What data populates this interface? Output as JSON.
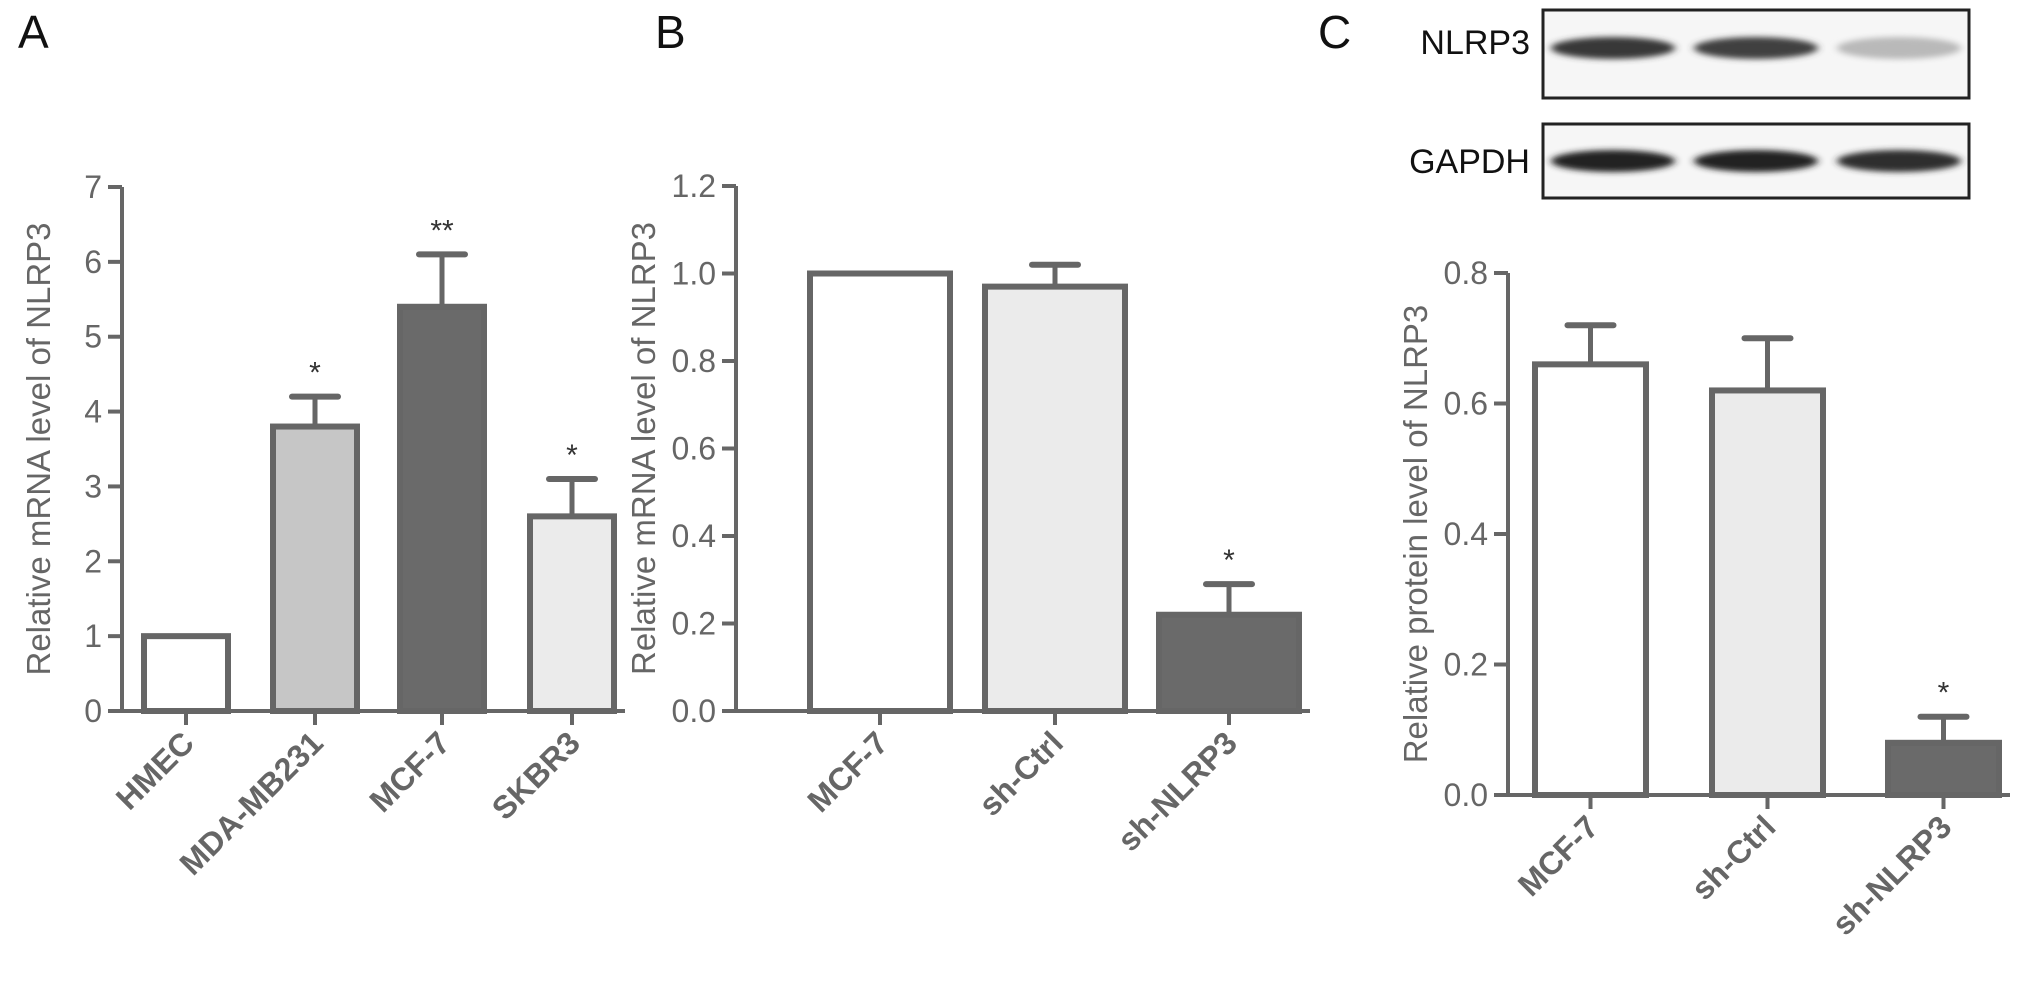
{
  "colors": {
    "axis": "#666666",
    "white": "#ffffff",
    "light": "#ebebeb",
    "mid": "#c6c6c6",
    "dark": "#6a6a6a"
  },
  "blot": {
    "panel_label": "C",
    "rows": [
      {
        "label": "NLRP3",
        "band_intensity": [
          0.9,
          0.85,
          0.25
        ]
      },
      {
        "label": "GAPDH",
        "band_intensity": [
          1.0,
          1.0,
          0.95
        ]
      }
    ]
  },
  "chart_data": [
    {
      "type": "bar",
      "panel_label": "A",
      "categories": [
        "HMEC",
        "MDA-MB231",
        "MCF-7",
        "SKBR3"
      ],
      "values": [
        1.0,
        3.8,
        5.4,
        2.6
      ],
      "error_upper": [
        1.0,
        4.2,
        6.1,
        3.1
      ],
      "significance": [
        "",
        "*",
        "**",
        "*"
      ],
      "fills": [
        "white",
        "mid",
        "dark",
        "light"
      ],
      "ylabel": "Relative mRNA level of NLRP3",
      "ylim": [
        0,
        7
      ],
      "yticks": [
        "0",
        "1",
        "2",
        "3",
        "4",
        "5",
        "6",
        "7"
      ]
    },
    {
      "type": "bar",
      "panel_label": "B",
      "categories": [
        "MCF-7",
        "sh-Ctrl",
        "sh-NLRP3"
      ],
      "values": [
        1.0,
        0.97,
        0.22
      ],
      "error_upper": [
        1.0,
        1.02,
        0.29
      ],
      "significance": [
        "",
        "",
        "*"
      ],
      "fills": [
        "white",
        "light",
        "dark"
      ],
      "ylabel": "Relative mRNA level of NLRP3",
      "ylim": [
        0,
        1.2
      ],
      "yticks": [
        "0.0",
        "0.2",
        "0.4",
        "0.6",
        "0.8",
        "1.0",
        "1.2"
      ]
    },
    {
      "type": "bar",
      "panel_label": "",
      "categories": [
        "MCF-7",
        "sh-Ctrl",
        "sh-NLRP3"
      ],
      "values": [
        0.66,
        0.62,
        0.08
      ],
      "error_upper": [
        0.72,
        0.7,
        0.12
      ],
      "significance": [
        "",
        "",
        "*"
      ],
      "fills": [
        "white",
        "light",
        "dark"
      ],
      "ylabel": "Relative protein level of NLRP3",
      "ylim": [
        0,
        0.8
      ],
      "yticks": [
        "0.0",
        "0.2",
        "0.4",
        "0.6",
        "0.8"
      ]
    }
  ]
}
